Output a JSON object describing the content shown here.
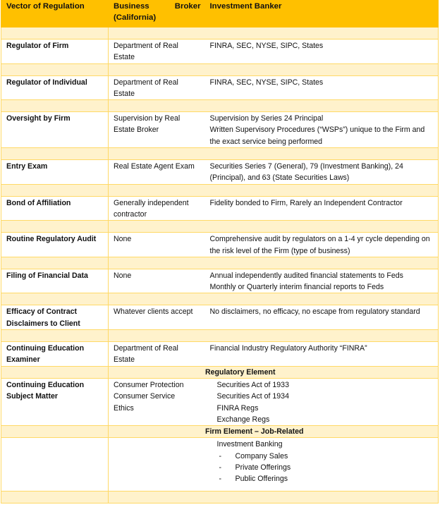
{
  "colors": {
    "header_bg": "#FFC000",
    "band_bg": "#FFF2CC",
    "border": "#FFD966"
  },
  "header": {
    "col1": "Vector of Regulation",
    "col2_line1": "Business Broker",
    "col2_line2": "(California)",
    "col3": "Investment Banker"
  },
  "rows": [
    {
      "vector": "Regulator of Firm",
      "broker": [
        "Department of Real Estate"
      ],
      "banker": [
        "FINRA, SEC, NYSE, SIPC, States"
      ]
    },
    {
      "vector": "Regulator of Individual",
      "broker": [
        "Department of Real Estate"
      ],
      "banker": [
        "FINRA, SEC, NYSE, SIPC, States"
      ]
    },
    {
      "vector": "Oversight by Firm",
      "broker": [
        "Supervision by Real Estate Broker"
      ],
      "banker": [
        "Supervision by Series 24 Principal",
        "Written Supervisory Procedures (“WSPs”) unique to the Firm and the exact service being performed"
      ]
    },
    {
      "vector": "Entry Exam",
      "broker": [
        "Real Estate Agent Exam"
      ],
      "banker": [
        "Securities Series 7 (General), 79 (Investment Banking), 24 (Principal), and 63 (State Securities Laws)"
      ]
    },
    {
      "vector": "Bond of Affiliation",
      "broker": [
        "Generally independent contractor"
      ],
      "banker": [
        "Fidelity bonded to Firm, Rarely an Independent Contractor"
      ]
    },
    {
      "vector": "Routine Regulatory Audit",
      "broker": [
        "None"
      ],
      "banker": [
        "Comprehensive audit by regulators on a 1-4 yr cycle depending on the risk level of the Firm (type of business)"
      ]
    },
    {
      "vector": "Filing of Financial Data",
      "broker": [
        "None"
      ],
      "banker": [
        "Annual independently audited financial statements to Feds",
        "Monthly or Quarterly interim financial reports to Feds"
      ]
    },
    {
      "vector": "Efficacy of Contract Disclaimers to Client",
      "broker": [
        "Whatever clients accept"
      ],
      "banker": [
        "No disclaimers, no efficacy, no escape from regulatory standard"
      ]
    },
    {
      "vector": "Continuing Education Examiner",
      "broker": [
        "Department of Real Estate"
      ],
      "banker": [
        "Financial Industry Regulatory Authority “FINRA”"
      ]
    }
  ],
  "ce_subject": {
    "regulatory_title": "Regulatory Element",
    "vector": "Continuing Education Subject Matter",
    "broker": [
      "Consumer Protection",
      "Consumer Service",
      "Ethics"
    ],
    "regulatory_items": [
      "Securities Act of 1933",
      "Securities Act of 1934",
      "FINRA Regs",
      "Exchange Regs"
    ],
    "firm_title": "Firm Element – Job-Related",
    "firm_heading": "Investment Banking",
    "firm_items": [
      "Company Sales",
      "Private Offerings",
      "Public Offerings"
    ],
    "dash": "-"
  }
}
